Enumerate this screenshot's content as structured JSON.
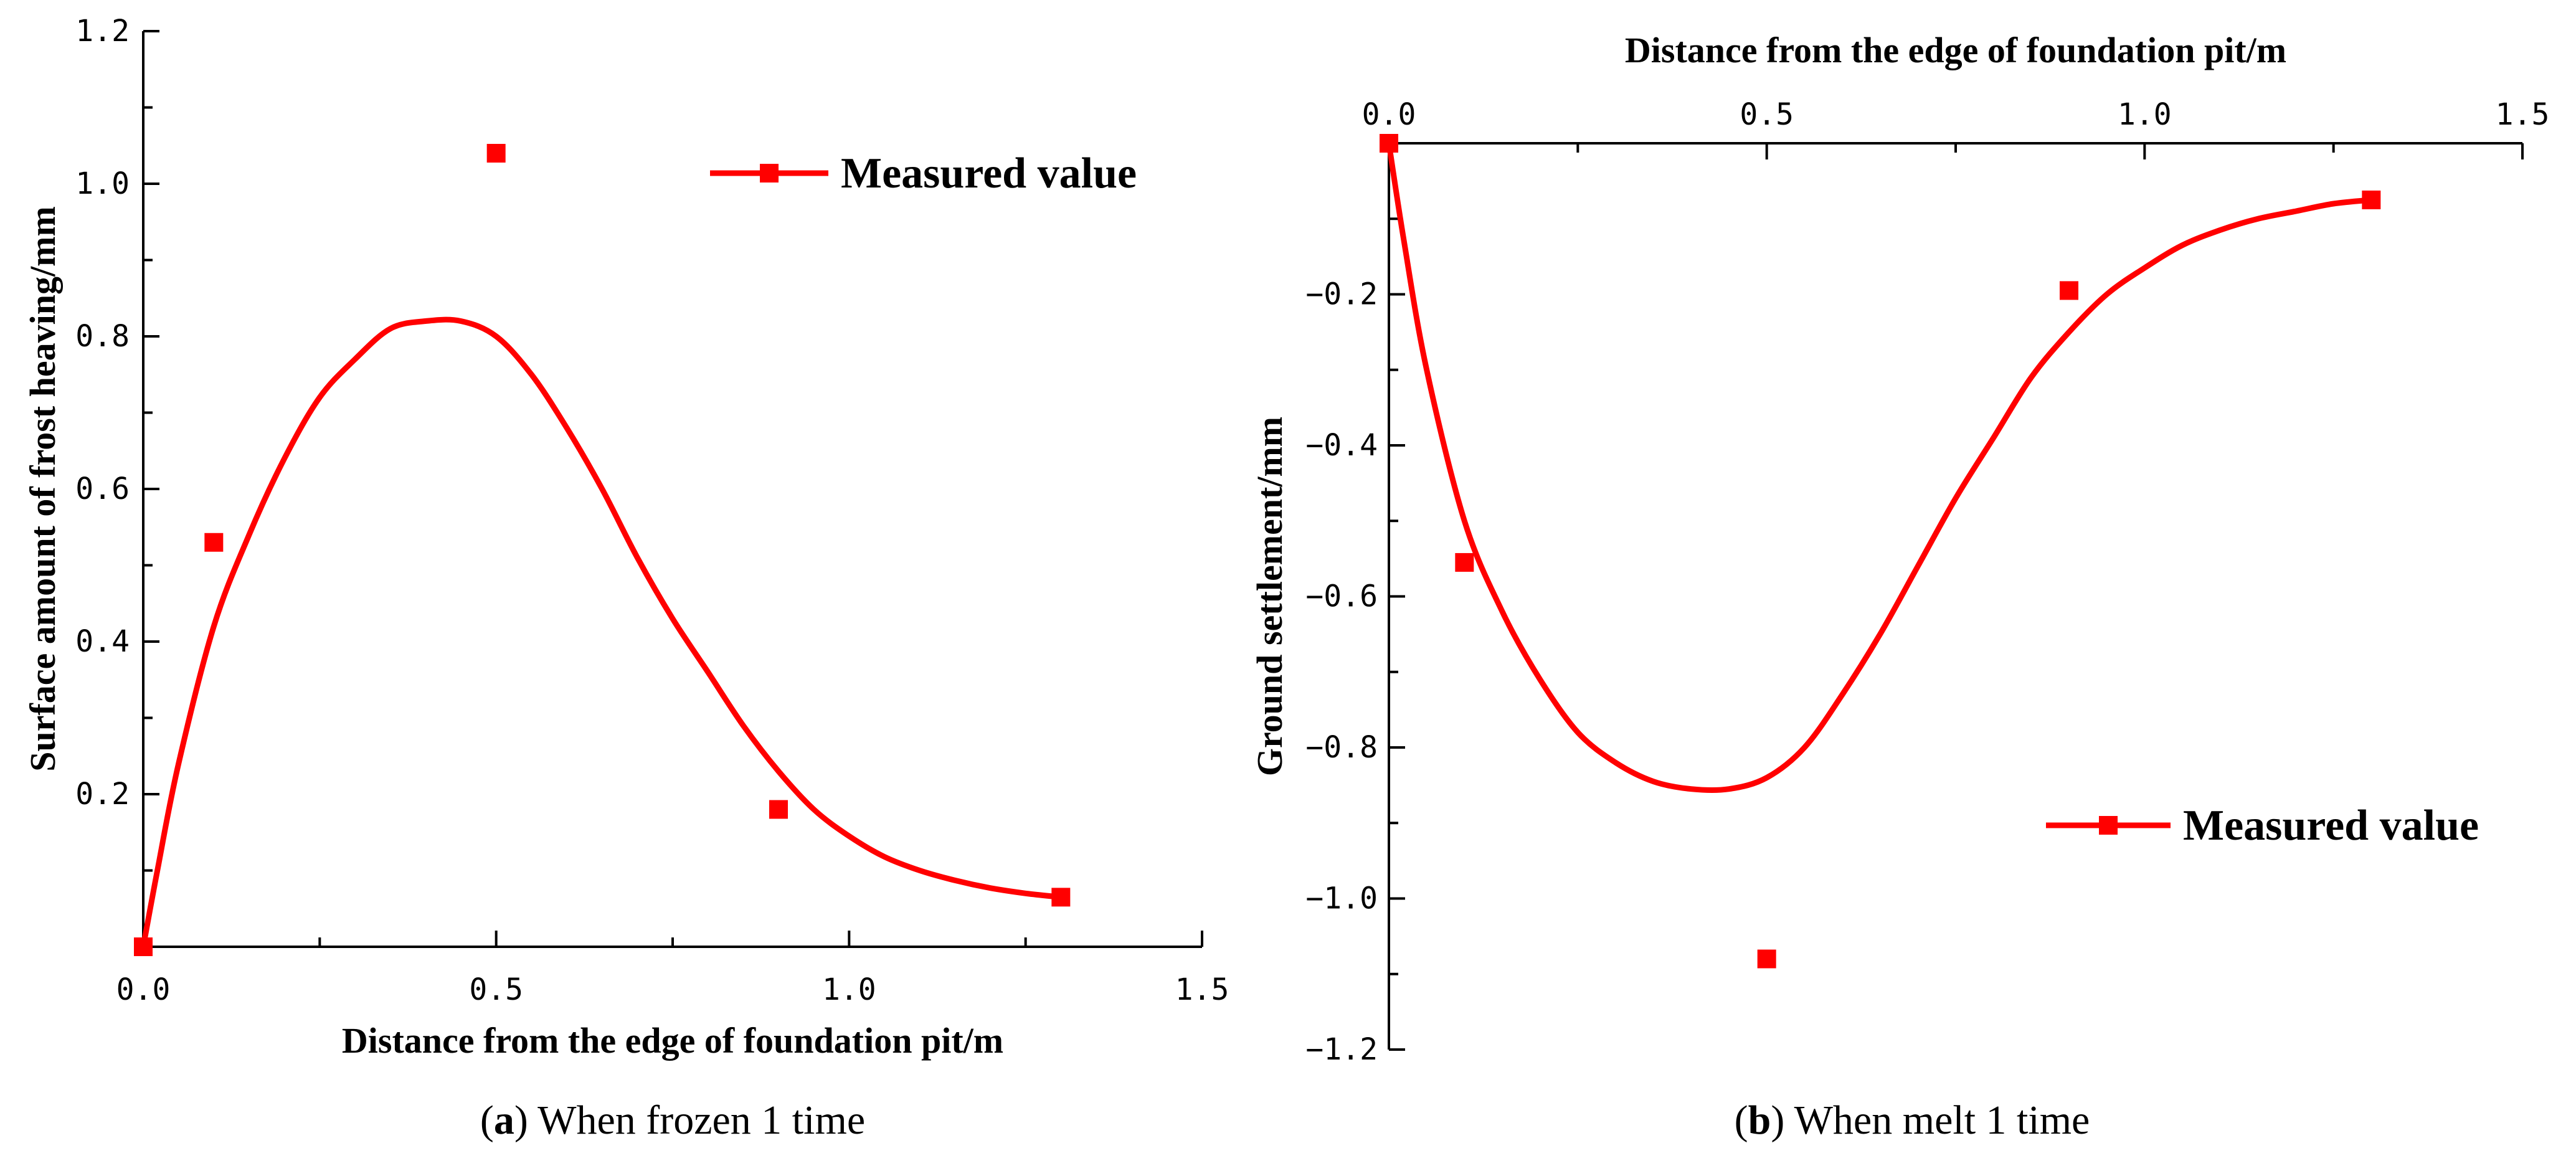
{
  "chart_data": [
    {
      "type": "scatter",
      "caption_letter": "a",
      "caption_text": "When frozen 1 time",
      "caption_open": "(",
      "caption_close": ")",
      "xlabel": "Distance from the edge of foundation pit/m",
      "ylabel": "Surface amount of frost heaving/mm",
      "xlim": [
        0,
        1.5
      ],
      "ylim": [
        0,
        1.2
      ],
      "x_ticks": [
        0,
        0.5,
        1.0,
        1.5
      ],
      "x_tick_labels": [
        "0.0",
        "0.5",
        "1.0",
        "1.5"
      ],
      "y_ticks": [
        0.2,
        0.4,
        0.6,
        0.8,
        1.0,
        1.2
      ],
      "y_tick_labels": [
        "0.2",
        "0.4",
        "0.6",
        "0.8",
        "1.0",
        "1.2"
      ],
      "x_axis_position": "bottom",
      "legend_position": "top-right",
      "grid": false,
      "series": [
        {
          "name": "Measured value",
          "color": "#ff0000",
          "marker": "square",
          "x": [
            0.0,
            0.1,
            0.5,
            0.9,
            1.3
          ],
          "y": [
            0.0,
            0.53,
            1.04,
            0.18,
            0.065
          ]
        }
      ],
      "fit_curve": {
        "color": "#ff0000",
        "x": [
          0.0,
          0.02,
          0.05,
          0.1,
          0.15,
          0.2,
          0.25,
          0.3,
          0.35,
          0.4,
          0.45,
          0.5,
          0.55,
          0.6,
          0.65,
          0.7,
          0.75,
          0.8,
          0.85,
          0.9,
          0.95,
          1.0,
          1.05,
          1.1,
          1.15,
          1.2,
          1.25,
          1.3
        ],
        "y": [
          0.0,
          0.1,
          0.24,
          0.42,
          0.54,
          0.64,
          0.72,
          0.77,
          0.81,
          0.82,
          0.82,
          0.8,
          0.75,
          0.68,
          0.6,
          0.51,
          0.43,
          0.36,
          0.29,
          0.23,
          0.18,
          0.145,
          0.118,
          0.1,
          0.087,
          0.077,
          0.07,
          0.065
        ]
      }
    },
    {
      "type": "scatter",
      "caption_letter": "b",
      "caption_text": "When melt 1 time",
      "caption_open": "(",
      "caption_close": ")",
      "xlabel": "Distance from the edge of foundation pit/m",
      "ylabel": "Ground settlement/mm",
      "xlim": [
        0,
        1.5
      ],
      "ylim": [
        -1.2,
        0
      ],
      "x_ticks": [
        0,
        0.5,
        1.0,
        1.5
      ],
      "x_tick_labels": [
        "0.0",
        "0.5",
        "1.0",
        "1.5"
      ],
      "y_ticks": [
        -0.2,
        -0.4,
        -0.6,
        -0.8,
        -1.0,
        -1.2
      ],
      "y_tick_labels": [
        "-0.2",
        "-0.4",
        "-0.6",
        "-0.8",
        "-1.0",
        "-1.2"
      ],
      "x_axis_position": "top",
      "legend_position": "right",
      "grid": false,
      "series": [
        {
          "name": "Measured value",
          "color": "#ff0000",
          "marker": "square",
          "x": [
            0.0,
            0.1,
            0.5,
            0.9,
            1.3
          ],
          "y": [
            0.0,
            -0.555,
            -1.08,
            -0.195,
            -0.075
          ]
        }
      ],
      "fit_curve": {
        "color": "#ff0000",
        "x": [
          0.0,
          0.02,
          0.05,
          0.1,
          0.15,
          0.2,
          0.25,
          0.3,
          0.35,
          0.4,
          0.45,
          0.5,
          0.55,
          0.6,
          0.65,
          0.7,
          0.75,
          0.8,
          0.85,
          0.9,
          0.95,
          1.0,
          1.05,
          1.1,
          1.15,
          1.2,
          1.25,
          1.3
        ],
        "y": [
          0.0,
          -0.13,
          -0.3,
          -0.5,
          -0.62,
          -0.71,
          -0.78,
          -0.82,
          -0.845,
          -0.855,
          -0.855,
          -0.84,
          -0.8,
          -0.73,
          -0.65,
          -0.56,
          -0.47,
          -0.39,
          -0.31,
          -0.25,
          -0.2,
          -0.165,
          -0.135,
          -0.115,
          -0.1,
          -0.09,
          -0.08,
          -0.075
        ]
      }
    }
  ]
}
